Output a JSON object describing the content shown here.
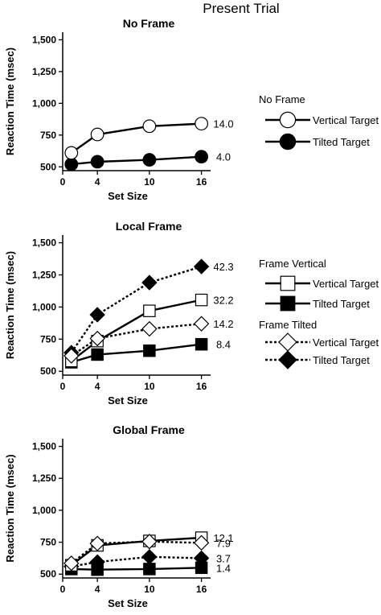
{
  "figure_title": "Present Trial",
  "chart_data": [
    {
      "type": "line",
      "title": "No Frame",
      "xlabel": "Set Size",
      "ylabel": "Reaction Time (msec)",
      "x": [
        1,
        4,
        10,
        16
      ],
      "x_ticks": [
        0,
        4,
        10,
        16
      ],
      "xlim": [
        0,
        16.5
      ],
      "y_ticks": [
        500,
        750,
        1000,
        1250,
        1500
      ],
      "ylim": [
        470,
        1560
      ],
      "grid": false,
      "legend_position": "right",
      "series": [
        {
          "key": "vt",
          "values": [
            610,
            755,
            820,
            840
          ],
          "marker": "circle",
          "fill": "#ffffff",
          "dash": "solid",
          "slope_label": "14.0"
        },
        {
          "key": "tt",
          "values": [
            520,
            540,
            555,
            580
          ],
          "marker": "circle",
          "fill": "#000000",
          "dash": "solid",
          "slope_label": "4.0"
        }
      ]
    },
    {
      "type": "line",
      "title": "Local Frame",
      "xlabel": "Set Size",
      "ylabel": "Reaction Time (msec)",
      "x": [
        1,
        4,
        10,
        16
      ],
      "x_ticks": [
        0,
        4,
        10,
        16
      ],
      "xlim": [
        0,
        16.5
      ],
      "y_ticks": [
        500,
        750,
        1000,
        1250,
        1500
      ],
      "ylim": [
        470,
        1560
      ],
      "grid": false,
      "legend_position": "right",
      "series": [
        {
          "key": "fv_vt",
          "values": [
            580,
            735,
            970,
            1055
          ],
          "marker": "square",
          "fill": "#ffffff",
          "dash": "solid",
          "slope_label": "32.2"
        },
        {
          "key": "fv_tt",
          "values": [
            570,
            630,
            660,
            710
          ],
          "marker": "square",
          "fill": "#000000",
          "dash": "solid",
          "slope_label": "8.4"
        },
        {
          "key": "ft_vt",
          "values": [
            620,
            755,
            830,
            870
          ],
          "marker": "diamond",
          "fill": "#ffffff",
          "dash": "dotted",
          "slope_label": "14.2"
        },
        {
          "key": "ft_tt",
          "values": [
            645,
            940,
            1190,
            1315
          ],
          "marker": "diamond",
          "fill": "#000000",
          "dash": "dotted",
          "slope_label": "42.3"
        }
      ]
    },
    {
      "type": "line",
      "title": "Global Frame",
      "xlabel": "Set Size",
      "ylabel": "Reaction Time (msec)",
      "x": [
        1,
        4,
        10,
        16
      ],
      "x_ticks": [
        0,
        4,
        10,
        16
      ],
      "xlim": [
        0,
        16.5
      ],
      "y_ticks": [
        500,
        750,
        1000,
        1250,
        1500
      ],
      "ylim": [
        470,
        1560
      ],
      "grid": false,
      "legend_position": "right",
      "series": [
        {
          "key": "fv_vt",
          "values": [
            570,
            725,
            760,
            785
          ],
          "marker": "square",
          "fill": "#ffffff",
          "dash": "solid",
          "slope_label": "12.1"
        },
        {
          "key": "fv_tt",
          "values": [
            540,
            535,
            540,
            550
          ],
          "marker": "square",
          "fill": "#000000",
          "dash": "solid",
          "slope_label": "1.4"
        },
        {
          "key": "ft_vt",
          "values": [
            585,
            740,
            755,
            745
          ],
          "marker": "diamond",
          "fill": "#ffffff",
          "dash": "dotted",
          "slope_label": "7.9"
        },
        {
          "key": "ft_tt",
          "values": [
            560,
            595,
            635,
            625
          ],
          "marker": "diamond",
          "fill": "#000000",
          "dash": "dotted",
          "slope_label": "3.7"
        }
      ]
    }
  ],
  "legends": [
    {
      "heading": "No Frame",
      "entries": [
        {
          "label": "Vertical Target",
          "marker": "circle",
          "fill": "#ffffff",
          "dash": "solid"
        },
        {
          "label": "Tilted Target",
          "marker": "circle",
          "fill": "#000000",
          "dash": "solid"
        }
      ]
    },
    {
      "heading": "Frame Vertical",
      "entries": [
        {
          "label": "Vertical Target",
          "marker": "square",
          "fill": "#ffffff",
          "dash": "solid"
        },
        {
          "label": "Tilted Target",
          "marker": "square",
          "fill": "#000000",
          "dash": "solid"
        }
      ]
    },
    {
      "heading": "Frame Tilted",
      "entries": [
        {
          "label": "Vertical Target",
          "marker": "diamond",
          "fill": "#ffffff",
          "dash": "dotted"
        },
        {
          "label": "Tilted Target",
          "marker": "diamond",
          "fill": "#000000",
          "dash": "dotted"
        }
      ]
    }
  ]
}
